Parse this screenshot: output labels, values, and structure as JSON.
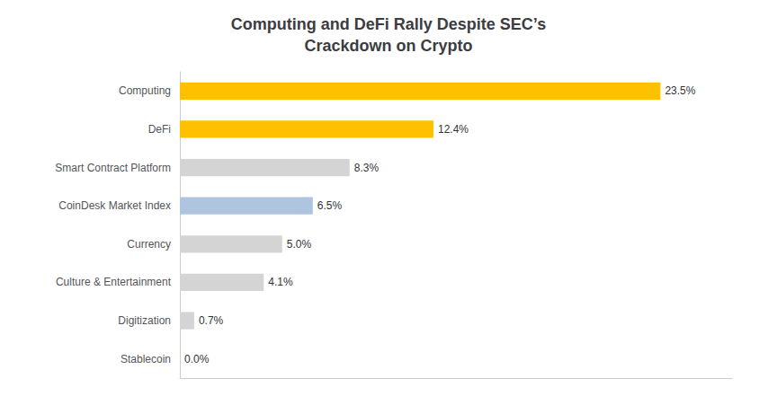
{
  "chart_data": {
    "type": "bar",
    "orientation": "horizontal",
    "title": "Computing and DeFi Rally Despite SEC’s\nCrackdown on Crypto",
    "categories": [
      "Stablecoin",
      "Digitization",
      "Culture & Entertainment",
      "Currency",
      "CoinDesk Market Index",
      "Smart Contract Platform",
      "DeFi",
      "Computing"
    ],
    "values": [
      0.0,
      0.7,
      4.1,
      5.0,
      6.5,
      8.3,
      12.4,
      23.5
    ],
    "value_labels": [
      "0.0%",
      "0.7%",
      "4.1%",
      "5.0%",
      "6.5%",
      "8.3%",
      "12.4%",
      "23.5%"
    ],
    "colors": [
      "#d4d4d4",
      "#d4d4d4",
      "#d4d4d4",
      "#d4d4d4",
      "#afc4de",
      "#d4d4d4",
      "#ffc000",
      "#ffc000"
    ],
    "xlim": [
      0,
      27
    ],
    "data_labels": true,
    "tick_labels": "y",
    "grid": false
  }
}
